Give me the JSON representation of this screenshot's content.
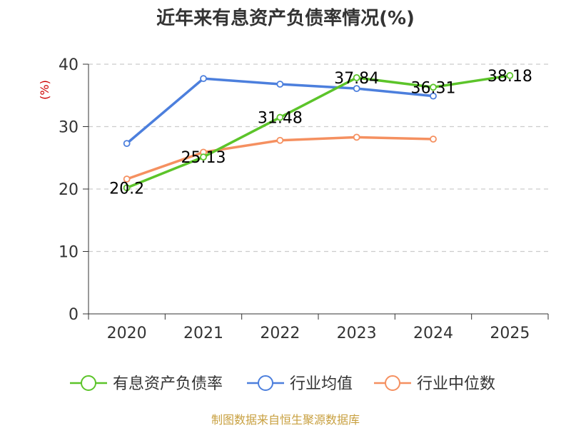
{
  "chart_data": {
    "type": "line",
    "title": "近年来有息资产负债率情况(%)",
    "ylabel": "(%)",
    "xlabel": "",
    "categories": [
      "2020",
      "2021",
      "2022",
      "2023",
      "2024",
      "2025"
    ],
    "ylim": [
      0,
      40
    ],
    "yticks": [
      0,
      10,
      20,
      30,
      40
    ],
    "grid": true,
    "legend_position": "bottom",
    "series": [
      {
        "name": "有息资产负债率",
        "color": "#5cc42a",
        "values": [
          20.2,
          25.13,
          31.48,
          37.84,
          36.31,
          38.18
        ],
        "labels": [
          "20.2",
          "25.13",
          "31.48",
          "37.84",
          "36.31",
          "38.18"
        ]
      },
      {
        "name": "行业均值",
        "color": "#4c7fdd",
        "values": [
          27.3,
          37.7,
          36.8,
          36.1,
          34.9,
          null
        ]
      },
      {
        "name": "行业中位数",
        "color": "#f59060",
        "values": [
          21.6,
          25.9,
          27.8,
          28.3,
          28.0,
          null
        ]
      }
    ]
  },
  "footer": {
    "source": "制图数据来自恒生聚源数据库"
  }
}
